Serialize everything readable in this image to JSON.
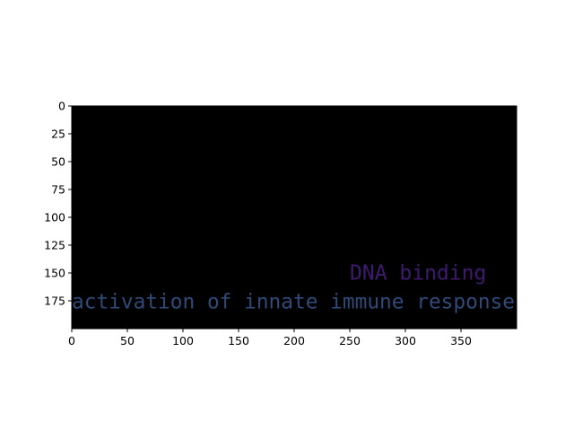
{
  "chart_data": {
    "type": "heatmap",
    "title": "",
    "xlabel": "",
    "ylabel": "",
    "xlim": [
      0,
      400
    ],
    "ylim": [
      200,
      0
    ],
    "y_axis_inverted": true,
    "background_color": "#000000",
    "x_ticks": [
      0,
      50,
      100,
      150,
      200,
      250,
      300,
      350
    ],
    "y_ticks": [
      0,
      25,
      50,
      75,
      100,
      125,
      150,
      175
    ],
    "grid": false,
    "legend": "none",
    "texts": [
      {
        "label": "DNA binding",
        "x": 250,
        "y": 143,
        "color": "#3f1a6e"
      },
      {
        "label": "activation of innate immune response",
        "x": 0,
        "y": 169,
        "color": "#2f4a78"
      }
    ]
  }
}
